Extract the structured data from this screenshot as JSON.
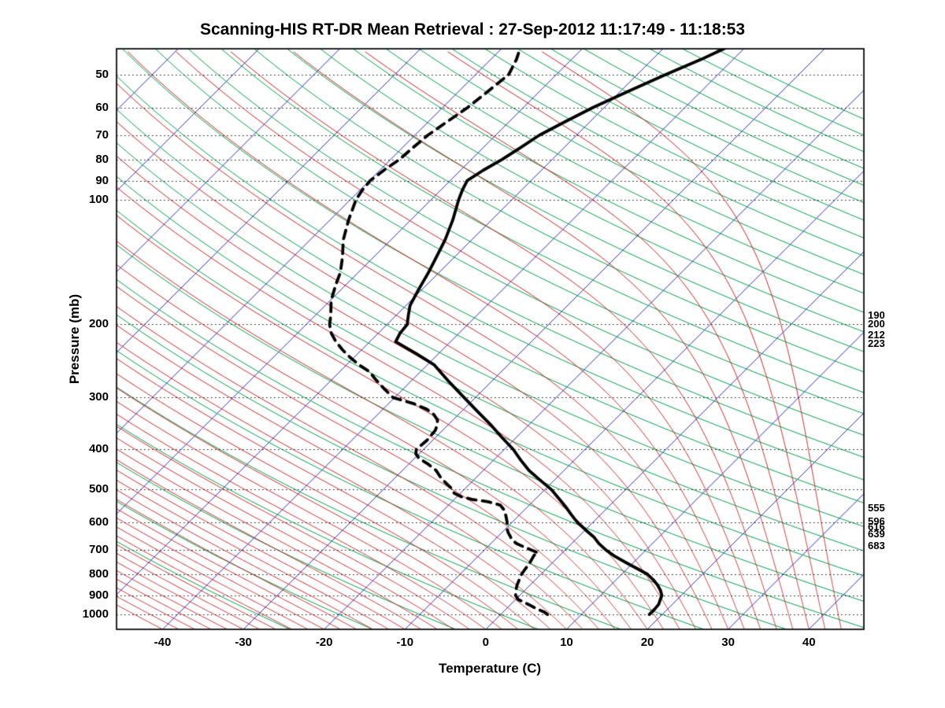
{
  "title": "Scanning-HIS RT-DR Mean Retrieval : 27-Sep-2012 11:17:49 - 11:18:53",
  "chart_data": {
    "type": "line",
    "variant": "skew-t-log-p",
    "title": "Scanning-HIS RT-DR Mean Retrieval : 27-Sep-2012 11:17:49 - 11:18:53",
    "xlabel": "Temperature (C)",
    "ylabel": "Pressure (mb)",
    "x_ticks": [
      -40,
      -30,
      -20,
      -10,
      0,
      10,
      20,
      30,
      40
    ],
    "pressure_ticks": [
      50,
      60,
      70,
      80,
      90,
      100,
      200,
      300,
      400,
      500,
      600,
      700,
      800,
      900,
      1000
    ],
    "pressure_range": [
      43.3,
      1086
    ],
    "temp_range_at_surface": [
      -45.7,
      46.8
    ],
    "skew_deg": 45,
    "grid": "dotted-isobars",
    "legend": "none",
    "background": {
      "isotherms": {
        "from": -120,
        "to": 100,
        "step": 10,
        "color": "#2b2bc8"
      },
      "dry_adiabats": {
        "from": -30,
        "to": 290,
        "step": 10,
        "color": "#00a04a"
      },
      "moist_adiabats": {
        "from": -40,
        "to": 44,
        "step": 2,
        "color": "#cc2020"
      },
      "isobar_color": "#1a1a1a",
      "frame_color": "#000000"
    },
    "series": [
      {
        "name": "temperature",
        "style": "solid",
        "color": "#000000",
        "points": [
          [
            1000,
            18.4
          ],
          [
            970,
            18.4
          ],
          [
            945,
            18.3
          ],
          [
            920,
            17.9
          ],
          [
            900,
            17.6
          ],
          [
            875,
            16.8
          ],
          [
            850,
            15.8
          ],
          [
            825,
            14.6
          ],
          [
            800,
            13.2
          ],
          [
            775,
            11.2
          ],
          [
            750,
            9.1
          ],
          [
            725,
            7.0
          ],
          [
            700,
            5.1
          ],
          [
            675,
            3.4
          ],
          [
            650,
            1.9
          ],
          [
            625,
            0.0
          ],
          [
            600,
            -1.9
          ],
          [
            575,
            -3.6
          ],
          [
            550,
            -5.3
          ],
          [
            525,
            -7.2
          ],
          [
            500,
            -9.2
          ],
          [
            475,
            -11.7
          ],
          [
            450,
            -14.3
          ],
          [
            425,
            -16.6
          ],
          [
            400,
            -18.9
          ],
          [
            375,
            -21.7
          ],
          [
            350,
            -24.6
          ],
          [
            325,
            -27.9
          ],
          [
            300,
            -31.4
          ],
          [
            275,
            -35.2
          ],
          [
            250,
            -39.2
          ],
          [
            235,
            -42.8
          ],
          [
            220,
            -46.8
          ],
          [
            210,
            -47.3
          ],
          [
            200,
            -47.5
          ],
          [
            190,
            -48.5
          ],
          [
            180,
            -49.5
          ],
          [
            165,
            -50.4
          ],
          [
            150,
            -51.3
          ],
          [
            138,
            -52.2
          ],
          [
            125,
            -53.3
          ],
          [
            112,
            -54.8
          ],
          [
            100,
            -56.6
          ],
          [
            95,
            -57.3
          ],
          [
            90,
            -57.9
          ],
          [
            85,
            -57.2
          ],
          [
            80,
            -56.2
          ],
          [
            75,
            -55.4
          ],
          [
            70,
            -54.6
          ],
          [
            65,
            -53.1
          ],
          [
            60,
            -51.4
          ],
          [
            55,
            -49.1
          ],
          [
            50,
            -46.5
          ],
          [
            46,
            -44.0
          ],
          [
            43,
            -42.3
          ]
        ]
      },
      {
        "name": "dewpoint",
        "style": "dashed",
        "color": "#000000",
        "points": [
          [
            1000,
            5.8
          ],
          [
            985,
            5.0
          ],
          [
            970,
            3.8
          ],
          [
            950,
            2.5
          ],
          [
            935,
            1.4
          ],
          [
            920,
            0.3
          ],
          [
            900,
            -0.5
          ],
          [
            875,
            -1.1
          ],
          [
            850,
            -1.6
          ],
          [
            825,
            -2.0
          ],
          [
            800,
            -2.4
          ],
          [
            775,
            -2.6
          ],
          [
            750,
            -2.8
          ],
          [
            735,
            -3.0
          ],
          [
            720,
            -3.2
          ],
          [
            710,
            -3.0
          ],
          [
            700,
            -4.1
          ],
          [
            690,
            -5.2
          ],
          [
            675,
            -6.8
          ],
          [
            660,
            -7.9
          ],
          [
            650,
            -8.4
          ],
          [
            635,
            -9.2
          ],
          [
            620,
            -9.9
          ],
          [
            600,
            -10.6
          ],
          [
            580,
            -11.5
          ],
          [
            560,
            -12.5
          ],
          [
            545,
            -13.6
          ],
          [
            535,
            -15.5
          ],
          [
            528,
            -17.8
          ],
          [
            520,
            -19.5
          ],
          [
            510,
            -20.8
          ],
          [
            500,
            -21.4
          ],
          [
            485,
            -22.8
          ],
          [
            470,
            -24.2
          ],
          [
            450,
            -25.8
          ],
          [
            435,
            -27.5
          ],
          [
            420,
            -29.5
          ],
          [
            410,
            -30.4
          ],
          [
            400,
            -30.9
          ],
          [
            390,
            -30.8
          ],
          [
            380,
            -30.7
          ],
          [
            370,
            -30.8
          ],
          [
            360,
            -30.9
          ],
          [
            350,
            -31.3
          ],
          [
            340,
            -31.9
          ],
          [
            330,
            -33.0
          ],
          [
            320,
            -34.6
          ],
          [
            310,
            -37.0
          ],
          [
            300,
            -40.2
          ],
          [
            285,
            -42.5
          ],
          [
            270,
            -44.8
          ],
          [
            260,
            -46.3
          ],
          [
            250,
            -48.5
          ],
          [
            240,
            -50.5
          ],
          [
            230,
            -52.4
          ],
          [
            220,
            -54.2
          ],
          [
            210,
            -55.8
          ],
          [
            200,
            -57.1
          ],
          [
            190,
            -58.1
          ],
          [
            175,
            -59.9
          ],
          [
            160,
            -61.3
          ],
          [
            150,
            -62.2
          ],
          [
            138,
            -63.8
          ],
          [
            125,
            -65.9
          ],
          [
            112,
            -67.7
          ],
          [
            100,
            -69.3
          ],
          [
            95,
            -69.7
          ],
          [
            90,
            -69.9
          ],
          [
            85,
            -69.5
          ],
          [
            80,
            -68.9
          ],
          [
            75,
            -68.7
          ],
          [
            70,
            -68.4
          ],
          [
            65,
            -67.7
          ],
          [
            60,
            -66.9
          ],
          [
            55,
            -66.4
          ],
          [
            50,
            -65.9
          ],
          [
            46,
            -66.8
          ],
          [
            43,
            -67.8
          ]
        ]
      }
    ],
    "right_annotations": [
      {
        "label": "190",
        "pressure": 190
      },
      {
        "label": "200",
        "pressure": 200
      },
      {
        "label": "212",
        "pressure": 212
      },
      {
        "label": "223",
        "pressure": 223
      },
      {
        "label": "555",
        "pressure": 555
      },
      {
        "label": "596",
        "pressure": 596
      },
      {
        "label": "616",
        "pressure": 616
      },
      {
        "label": "639",
        "pressure": 639
      },
      {
        "label": "683",
        "pressure": 683
      }
    ]
  }
}
